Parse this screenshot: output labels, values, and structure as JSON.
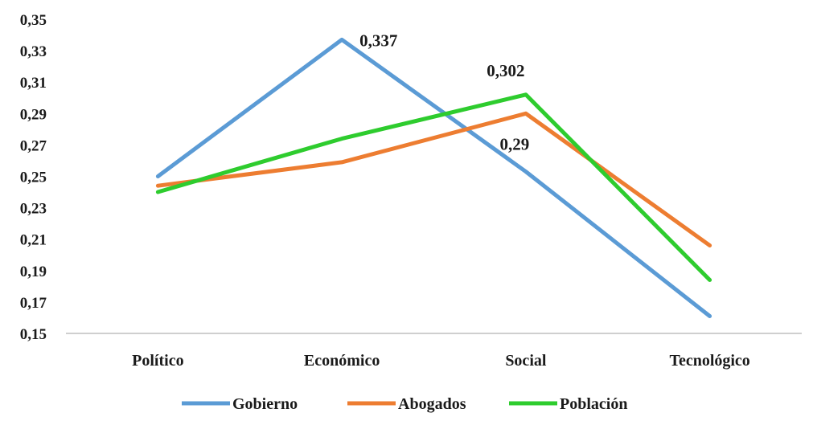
{
  "chart_data": {
    "type": "line",
    "title": "",
    "xlabel": "",
    "ylabel": "",
    "categories": [
      "Político",
      "Económico",
      "Social",
      "Tecnológico"
    ],
    "ylim": [
      0.15,
      0.35
    ],
    "ystep": 0.02,
    "ytick_labels": [
      "0,15",
      "0,17",
      "0,19",
      "0,21",
      "0,23",
      "0,25",
      "0,27",
      "0,29",
      "0,31",
      "0,33",
      "0,35"
    ],
    "grid": false,
    "legend_position": "bottom",
    "series": [
      {
        "name": "Gobierno",
        "color": "#5b9bd5",
        "values": [
          0.25,
          0.337,
          0.253,
          0.161
        ]
      },
      {
        "name": "Abogados",
        "color": "#ed7d31",
        "values": [
          0.244,
          0.259,
          0.29,
          0.206
        ]
      },
      {
        "name": "Población",
        "color": "#2ecc2e",
        "values": [
          0.24,
          0.274,
          0.302,
          0.184
        ]
      }
    ],
    "annotations": [
      {
        "series": 0,
        "index": 1,
        "text": "0,337"
      },
      {
        "series": 2,
        "index": 2,
        "text": "0,302"
      },
      {
        "series": 1,
        "index": 2,
        "text": "0,29"
      }
    ]
  }
}
